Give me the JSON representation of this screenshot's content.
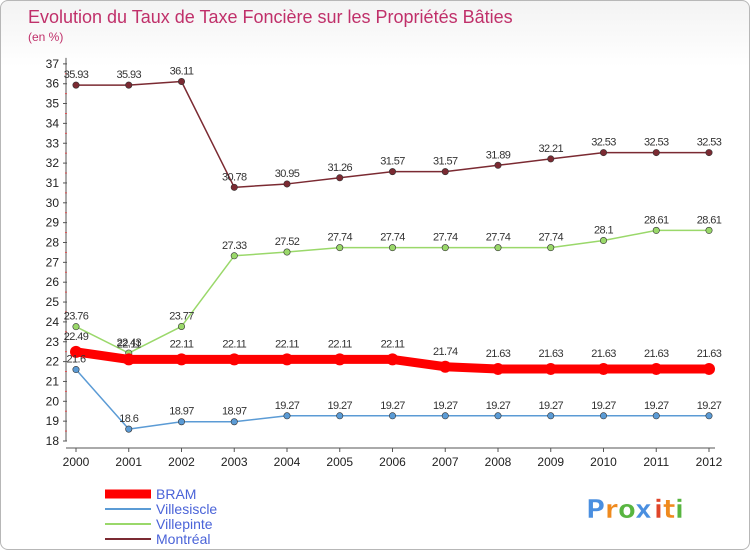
{
  "chart_data": {
    "type": "line",
    "title": "Evolution du Taux de Taxe Foncière sur les Propriétés Bâties",
    "subtitle": "(en %)",
    "x": [
      "2000",
      "2001",
      "2002",
      "2003",
      "2004",
      "2005",
      "2006",
      "2007",
      "2008",
      "2009",
      "2010",
      "2011",
      "2012"
    ],
    "ylim": [
      18,
      37
    ],
    "yticks": [
      18,
      19,
      20,
      21,
      22,
      23,
      24,
      25,
      26,
      27,
      28,
      29,
      30,
      31,
      32,
      33,
      34,
      35,
      36,
      37
    ],
    "grid": false,
    "legend_position": "bottom-left",
    "series": [
      {
        "name": "Montréal",
        "color": "#7b2a32",
        "values": [
          35.93,
          35.93,
          36.11,
          30.78,
          30.95,
          31.26,
          31.57,
          31.57,
          31.89,
          32.21,
          32.53,
          32.53,
          32.53
        ],
        "labels": [
          "35.93",
          "35.93",
          "36.11",
          "30.78",
          "30.95",
          "31.26",
          "31.57",
          "31.57",
          "31.89",
          "32.21",
          "32.53",
          "32.53",
          "32.53"
        ]
      },
      {
        "name": "Villepinte",
        "color": "#9ad86a",
        "values": [
          23.76,
          22.43,
          23.77,
          27.33,
          27.52,
          27.74,
          27.74,
          27.74,
          27.74,
          27.74,
          28.1,
          28.61,
          28.61
        ],
        "labels": [
          "23.76",
          "22.43",
          "23.77",
          "27.33",
          "27.52",
          "27.74",
          "27.74",
          "27.74",
          "27.74",
          "27.74",
          "28.1",
          "28.61",
          "28.61"
        ]
      },
      {
        "name": "BRAM",
        "color": "#ff0000",
        "values": [
          22.49,
          22.11,
          22.11,
          22.11,
          22.11,
          22.11,
          22.11,
          21.74,
          21.63,
          21.63,
          21.63,
          21.63,
          21.63
        ],
        "labels": [
          "22.49",
          "22.11",
          "22.11",
          "22.11",
          "22.11",
          "22.11",
          "22.11",
          "21.74",
          "21.63",
          "21.63",
          "21.63",
          "21.63",
          "21.63"
        ]
      },
      {
        "name": "Villesiscle",
        "color": "#5b9bd5",
        "values": [
          21.6,
          18.6,
          18.97,
          18.97,
          19.27,
          19.27,
          19.27,
          19.27,
          19.27,
          19.27,
          19.27,
          19.27,
          19.27
        ],
        "labels": [
          "21.6",
          "18.6",
          "18.97",
          "18.97",
          "19.27",
          "19.27",
          "19.27",
          "19.27",
          "19.27",
          "19.27",
          "19.27",
          "19.27",
          "19.27"
        ]
      }
    ],
    "legend": [
      "BRAM",
      "Villesiscle",
      "Villepinte",
      "Montréal"
    ]
  },
  "logo": {
    "text": "Proxiti",
    "letters": [
      "P",
      "r",
      "o",
      "x",
      "i",
      "t",
      "i"
    ],
    "colors": [
      "#4a8fe0",
      "#ef8a1e",
      "#58b540",
      "#4a8fe0",
      "#e0452a",
      "#ef8a1e",
      "#58b540"
    ]
  }
}
